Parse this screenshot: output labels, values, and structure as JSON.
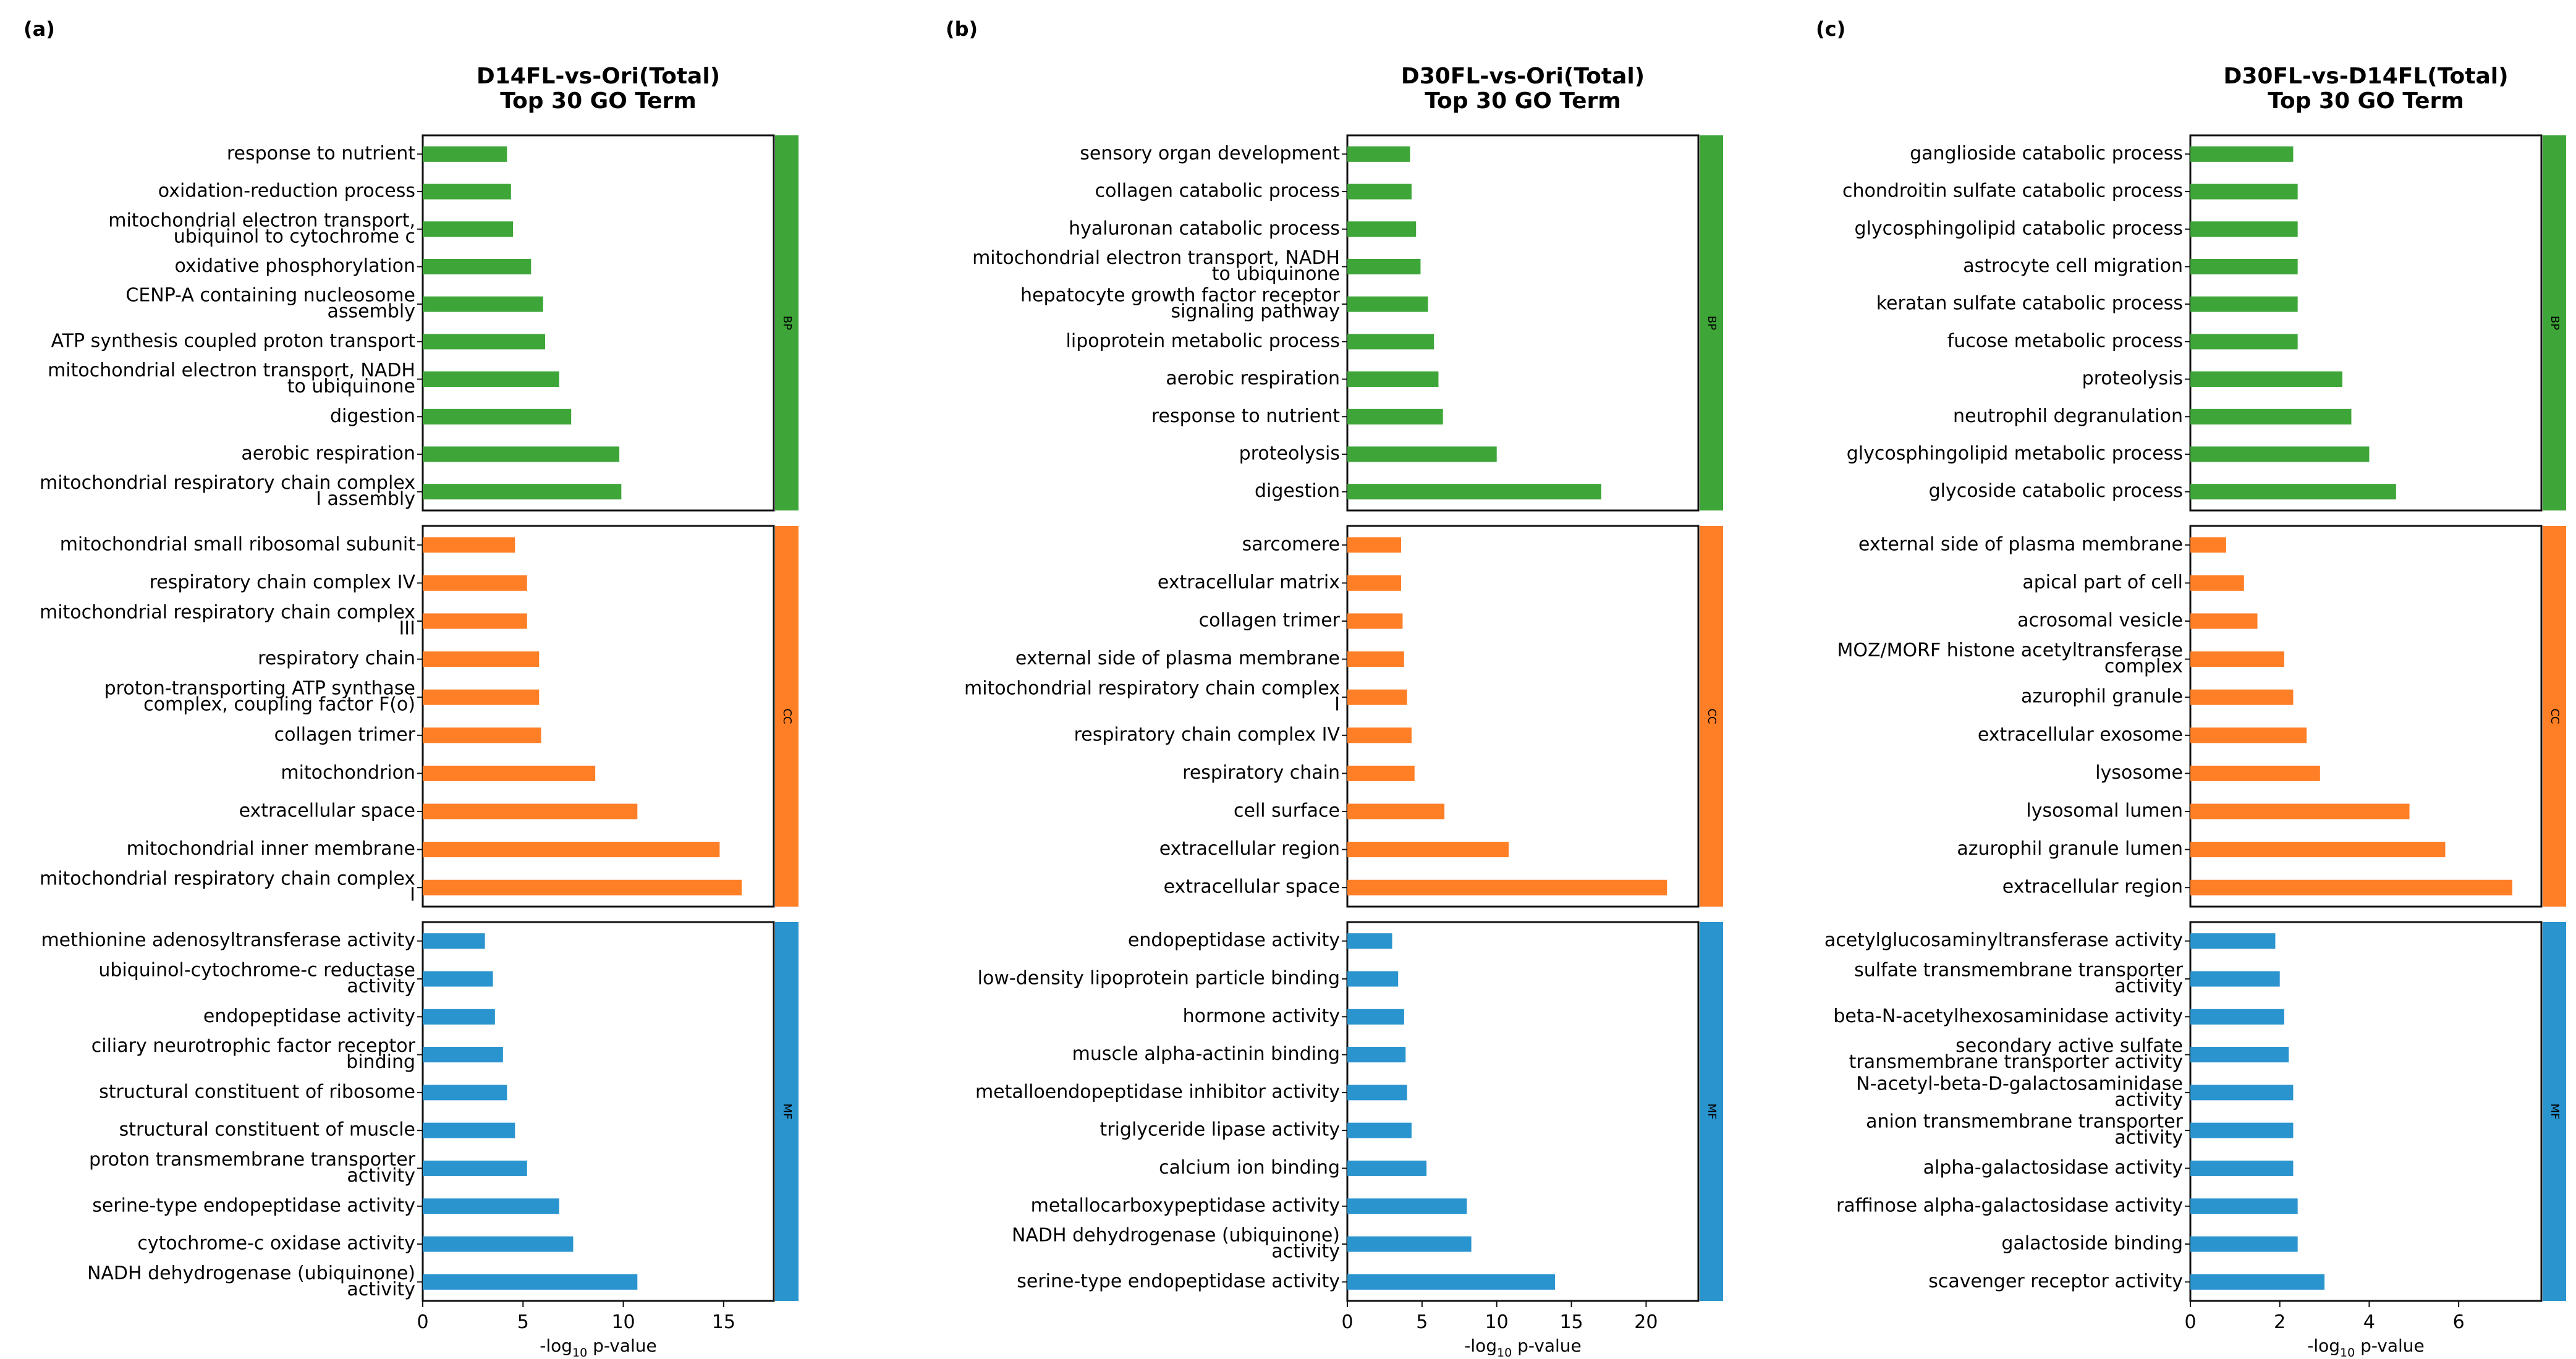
{
  "figure": {
    "colors": {
      "BP": "#3ea638",
      "CC": "#ff7f27",
      "MF": "#2a94cf",
      "axis": "#111111"
    }
  },
  "chart_data": [
    {
      "type": "bar",
      "orientation": "horizontal",
      "panel": "(a)",
      "title_line1": "D14FL-vs-Ori(Total)",
      "title_line2": "Top 30 GO Term",
      "xlabel_prefix": "-log",
      "xlabel_sub": "10",
      "xlabel_suffix": " p-value",
      "xlim": [
        0,
        17.5
      ],
      "xticks": [
        0,
        5,
        10,
        15
      ],
      "groups": [
        {
          "name": "BP",
          "categories": [
            [
              "response to nutrient"
            ],
            [
              "oxidation-reduction process"
            ],
            [
              "mitochondrial electron transport,",
              "ubiquinol to cytochrome c"
            ],
            [
              "oxidative phosphorylation"
            ],
            [
              "CENP-A containing nucleosome",
              "assembly"
            ],
            [
              "ATP synthesis coupled proton transport"
            ],
            [
              "mitochondrial electron transport, NADH",
              "to ubiquinone"
            ],
            [
              "digestion"
            ],
            [
              "aerobic respiration"
            ],
            [
              "mitochondrial respiratory chain complex",
              "I assembly"
            ]
          ],
          "values": [
            4.2,
            4.4,
            4.5,
            5.4,
            6.0,
            6.1,
            6.8,
            7.4,
            9.8,
            9.9
          ]
        },
        {
          "name": "CC",
          "categories": [
            [
              "mitochondrial small ribosomal subunit"
            ],
            [
              "respiratory chain complex IV"
            ],
            [
              "mitochondrial respiratory chain complex",
              "III"
            ],
            [
              "respiratory chain"
            ],
            [
              "proton-transporting ATP synthase",
              "complex, coupling factor F(o)"
            ],
            [
              "collagen trimer"
            ],
            [
              "mitochondrion"
            ],
            [
              "extracellular space"
            ],
            [
              "mitochondrial inner membrane"
            ],
            [
              "mitochondrial respiratory chain complex",
              "I"
            ]
          ],
          "values": [
            4.6,
            5.2,
            5.2,
            5.8,
            5.8,
            5.9,
            8.6,
            10.7,
            14.8,
            15.9
          ]
        },
        {
          "name": "MF",
          "categories": [
            [
              "methionine adenosyltransferase activity"
            ],
            [
              "ubiquinol-cytochrome-c reductase",
              "activity"
            ],
            [
              "endopeptidase activity"
            ],
            [
              "ciliary neurotrophic factor receptor",
              "binding"
            ],
            [
              "structural constituent of ribosome"
            ],
            [
              "structural constituent of muscle"
            ],
            [
              "proton transmembrane transporter",
              "activity"
            ],
            [
              "serine-type endopeptidase activity"
            ],
            [
              "cytochrome-c oxidase activity"
            ],
            [
              "NADH dehydrogenase (ubiquinone)",
              "activity"
            ]
          ],
          "values": [
            3.1,
            3.5,
            3.6,
            4.0,
            4.2,
            4.6,
            5.2,
            6.8,
            7.5,
            10.7
          ]
        }
      ]
    },
    {
      "type": "bar",
      "orientation": "horizontal",
      "panel": "(b)",
      "title_line1": "D30FL-vs-Ori(Total)",
      "title_line2": "Top 30 GO Term",
      "xlabel_prefix": "-log",
      "xlabel_sub": "10",
      "xlabel_suffix": " p-value",
      "xlim": [
        0,
        23.5
      ],
      "xticks": [
        0,
        5,
        10,
        15,
        20
      ],
      "groups": [
        {
          "name": "BP",
          "categories": [
            [
              "sensory organ development"
            ],
            [
              "collagen catabolic process"
            ],
            [
              "hyaluronan catabolic process"
            ],
            [
              "mitochondrial electron transport, NADH",
              "to ubiquinone"
            ],
            [
              "hepatocyte growth factor receptor",
              "signaling pathway"
            ],
            [
              "lipoprotein metabolic process"
            ],
            [
              "aerobic respiration"
            ],
            [
              "response to nutrient"
            ],
            [
              "proteolysis"
            ],
            [
              "digestion"
            ]
          ],
          "values": [
            4.2,
            4.3,
            4.6,
            4.9,
            5.4,
            5.8,
            6.1,
            6.4,
            10.0,
            17.0
          ]
        },
        {
          "name": "CC",
          "categories": [
            [
              "sarcomere"
            ],
            [
              "extracellular matrix"
            ],
            [
              "collagen trimer"
            ],
            [
              "external side of plasma membrane"
            ],
            [
              "mitochondrial respiratory chain complex",
              "I"
            ],
            [
              "respiratory chain complex IV"
            ],
            [
              "respiratory chain"
            ],
            [
              "cell surface"
            ],
            [
              "extracellular region"
            ],
            [
              "extracellular space"
            ]
          ],
          "values": [
            3.6,
            3.6,
            3.7,
            3.8,
            4.0,
            4.3,
            4.5,
            6.5,
            10.8,
            21.4
          ]
        },
        {
          "name": "MF",
          "categories": [
            [
              "endopeptidase activity"
            ],
            [
              "low-density lipoprotein particle binding"
            ],
            [
              "hormone activity"
            ],
            [
              "muscle alpha-actinin binding"
            ],
            [
              "metalloendopeptidase inhibitor activity"
            ],
            [
              "triglyceride lipase activity"
            ],
            [
              "calcium ion binding"
            ],
            [
              "metallocarboxypeptidase activity"
            ],
            [
              "NADH dehydrogenase (ubiquinone)",
              "activity"
            ],
            [
              "serine-type endopeptidase activity"
            ]
          ],
          "values": [
            3.0,
            3.4,
            3.8,
            3.9,
            4.0,
            4.3,
            5.3,
            8.0,
            8.3,
            13.9
          ]
        }
      ]
    },
    {
      "type": "bar",
      "orientation": "horizontal",
      "panel": "(c)",
      "title_line1": "D30FL-vs-D14FL(Total)",
      "title_line2": "Top 30 GO Term",
      "xlabel_prefix": "-log",
      "xlabel_sub": "10",
      "xlabel_suffix": " p-value",
      "xlim": [
        0,
        7.85
      ],
      "xticks": [
        0,
        2,
        4,
        6
      ],
      "groups": [
        {
          "name": "BP",
          "categories": [
            [
              "ganglioside catabolic process"
            ],
            [
              "chondroitin sulfate catabolic process"
            ],
            [
              "glycosphingolipid catabolic process"
            ],
            [
              "astrocyte cell migration"
            ],
            [
              "keratan sulfate catabolic process"
            ],
            [
              "fucose metabolic process"
            ],
            [
              "proteolysis"
            ],
            [
              "neutrophil degranulation"
            ],
            [
              "glycosphingolipid metabolic process"
            ],
            [
              "glycoside catabolic process"
            ]
          ],
          "values": [
            2.3,
            2.4,
            2.4,
            2.4,
            2.4,
            2.4,
            3.4,
            3.6,
            4.0,
            4.6
          ]
        },
        {
          "name": "CC",
          "categories": [
            [
              "external side of plasma membrane"
            ],
            [
              "apical part of cell"
            ],
            [
              "acrosomal vesicle"
            ],
            [
              "MOZ/MORF histone acetyltransferase",
              "complex"
            ],
            [
              "azurophil granule"
            ],
            [
              "extracellular exosome"
            ],
            [
              "lysosome"
            ],
            [
              "lysosomal lumen"
            ],
            [
              "azurophil granule lumen"
            ],
            [
              "extracellular region"
            ]
          ],
          "values": [
            0.8,
            1.2,
            1.5,
            2.1,
            2.3,
            2.6,
            2.9,
            4.9,
            5.7,
            7.2
          ]
        },
        {
          "name": "MF",
          "categories": [
            [
              "acetylglucosaminyltransferase activity"
            ],
            [
              "sulfate transmembrane transporter",
              "activity"
            ],
            [
              "beta-N-acetylhexosaminidase activity"
            ],
            [
              "secondary active sulfate",
              "transmembrane transporter activity"
            ],
            [
              "N-acetyl-beta-D-galactosaminidase",
              "activity"
            ],
            [
              "anion transmembrane transporter",
              "activity"
            ],
            [
              "alpha-galactosidase activity"
            ],
            [
              "raffinose alpha-galactosidase activity"
            ],
            [
              "galactoside binding"
            ],
            [
              "scavenger receptor activity"
            ]
          ],
          "values": [
            1.9,
            2.0,
            2.1,
            2.2,
            2.3,
            2.3,
            2.3,
            2.4,
            2.4,
            3.0
          ]
        }
      ]
    }
  ]
}
